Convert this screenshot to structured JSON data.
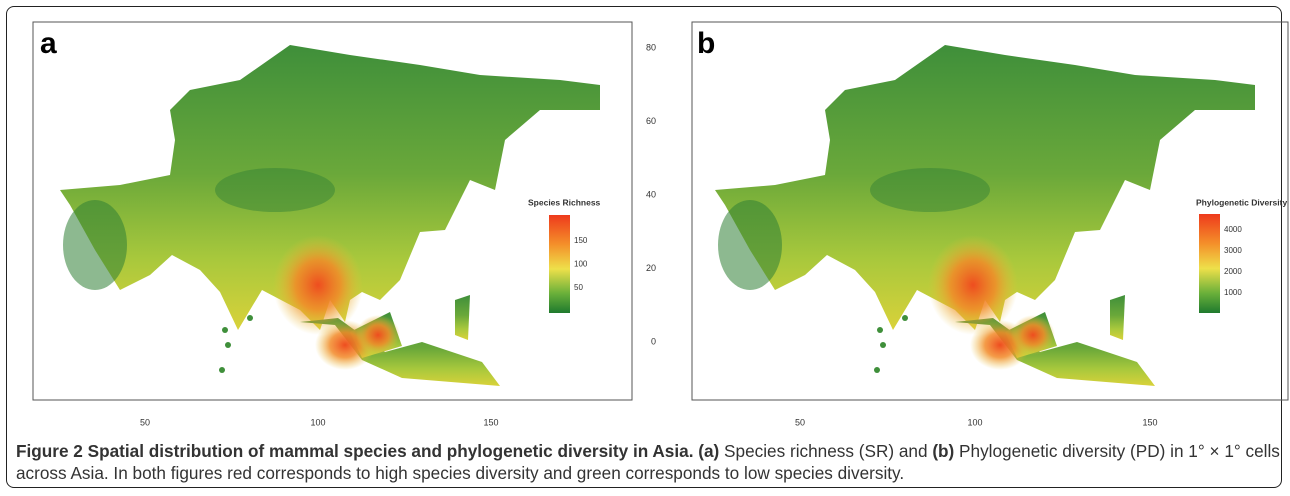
{
  "panels": [
    {
      "label": "a",
      "x_ticks": [
        50,
        100,
        150
      ],
      "legend": {
        "title": "Species Richness",
        "ticks": [
          150,
          100,
          50
        ]
      }
    },
    {
      "label": "b",
      "x_ticks": [
        50,
        100,
        150
      ],
      "legend": {
        "title": "Phylogenetic Diversity",
        "ticks": [
          4000,
          3000,
          2000,
          1000
        ]
      }
    }
  ],
  "y_ticks": [
    80,
    60,
    40,
    20,
    0
  ],
  "caption": {
    "title": "Figure 2 Spatial distribution of mammal species and phylogenetic diversity in Asia.",
    "a_marker": "(a)",
    "a_text": " Species richness (SR) and ",
    "b_marker": "(b)",
    "b_text": " Phylogenetic diversity (PD) in 1° × 1° cells across Asia. In both figures red corresponds to high species diversity and green corresponds to low species diversity."
  }
}
